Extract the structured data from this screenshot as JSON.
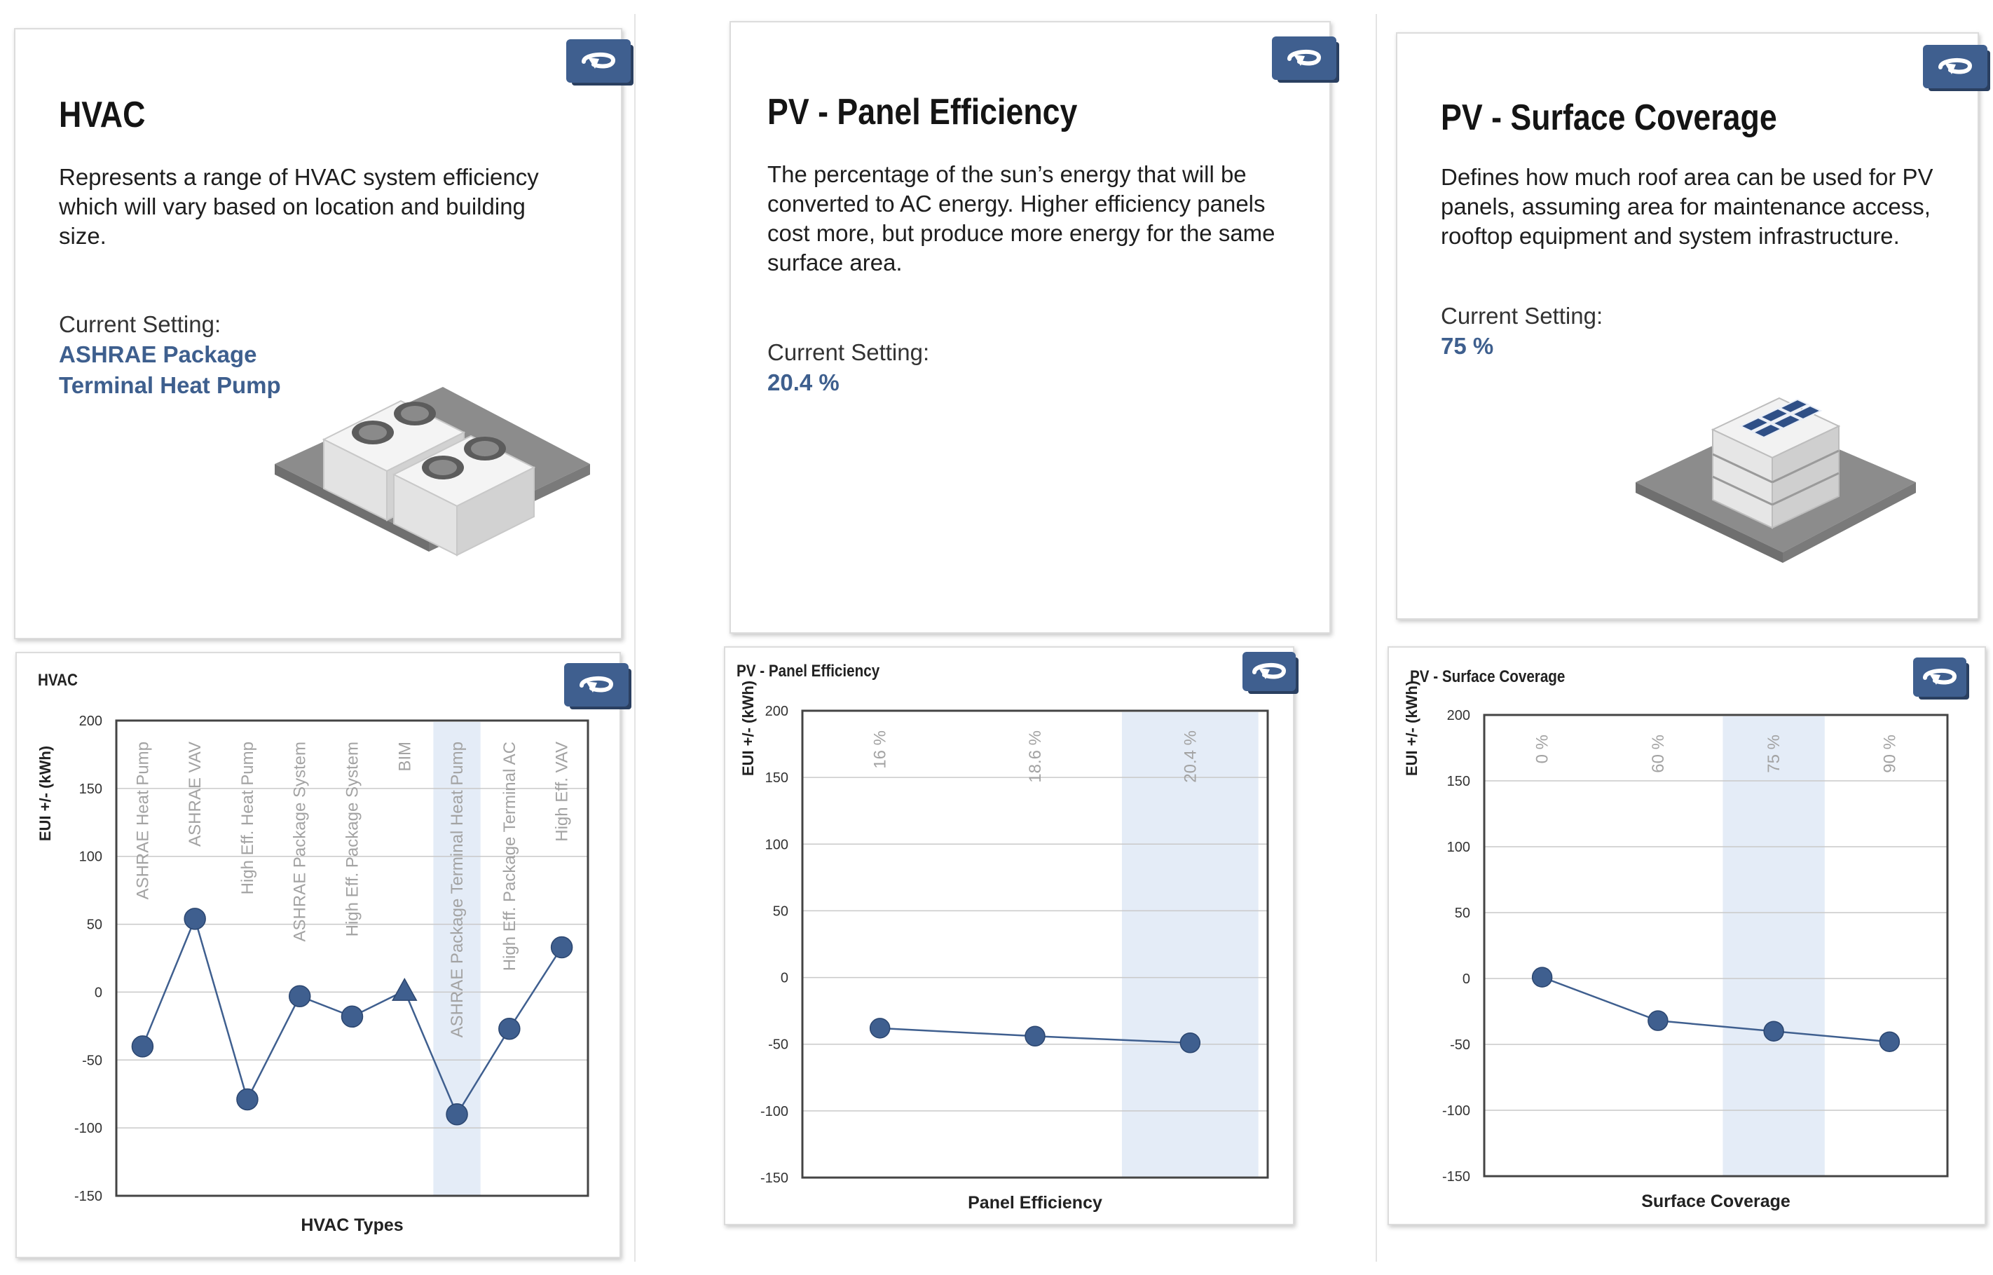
{
  "cards": [
    {
      "title": "HVAC",
      "description": "Represents a range of HVAC system efficiency which will vary based on location and building size.",
      "setting_label": "Current Setting:",
      "setting_value": "ASHRAE Package Terminal Heat Pump",
      "icon": "rotate-arrow-icon",
      "illustration": "rooftop-hvac-units-icon"
    },
    {
      "title": "PV - Panel Efficiency",
      "description": "The percentage of the sun’s energy that will be converted to AC energy. Higher efficiency panels cost more, but produce more energy for the same surface area.",
      "setting_label": "Current Setting:",
      "setting_value": "20.4 %",
      "icon": "rotate-arrow-icon"
    },
    {
      "title": "PV - Surface Coverage",
      "description": "Defines how much roof area can be used for PV panels, assuming area for maintenance access, rooftop equipment and system infrastructure.",
      "setting_label": "Current Setting:",
      "setting_value": "75 %",
      "icon": "rotate-arrow-icon",
      "illustration": "building-with-solar-panels-icon"
    }
  ],
  "colors": {
    "accent": "#3e5f8e",
    "badge": "#3f5f8f",
    "highlight": "#e4ecf7",
    "marker": "#3f5f8f"
  },
  "chart_data": [
    {
      "type": "line",
      "title": "HVAC",
      "xlabel": "HVAC Types",
      "ylabel": "EUI +/- (kWh)",
      "ylim": [
        -150,
        200
      ],
      "yticks": [
        200,
        150,
        100,
        50,
        0,
        -50,
        -100,
        -150
      ],
      "categories": [
        "ASHRAE Heat Pump",
        "ASHRAE VAV",
        "High Eff. Heat Pump",
        "ASHRAE Package System",
        "High Eff. Package System",
        "BIM",
        "ASHRAE Package Terminal Heat Pump",
        "High Eff. Package Terminal AC",
        "High Eff. VAV"
      ],
      "values": [
        -40,
        54,
        -79,
        -3,
        -18,
        1,
        -90,
        -27,
        33
      ],
      "markers": [
        "circle",
        "circle",
        "circle",
        "circle",
        "circle",
        "triangle",
        "circle",
        "circle",
        "circle"
      ],
      "highlight_category": "ASHRAE Package Terminal Heat Pump",
      "grid": true
    },
    {
      "type": "line",
      "title": "PV - Panel Efficiency",
      "xlabel": "Panel Efficiency",
      "ylabel": "EUI +/- (kWh)",
      "ylim": [
        -150,
        200
      ],
      "yticks": [
        200,
        150,
        100,
        50,
        0,
        -50,
        -100,
        -150
      ],
      "categories": [
        "16 %",
        "18.6 %",
        "20.4 %"
      ],
      "values": [
        -38,
        -44,
        -49
      ],
      "highlight_category": "20.4 %",
      "grid": true
    },
    {
      "type": "line",
      "title": "PV - Surface Coverage",
      "xlabel": "Surface Coverage",
      "ylabel": "EUI +/- (kWh)",
      "ylim": [
        -150,
        200
      ],
      "yticks": [
        200,
        150,
        100,
        50,
        0,
        -50,
        -100,
        -150
      ],
      "categories": [
        "0 %",
        "60 %",
        "75 %",
        "90 %"
      ],
      "values": [
        1,
        -32,
        -40,
        -48
      ],
      "highlight_category": "75 %",
      "grid": true
    }
  ]
}
